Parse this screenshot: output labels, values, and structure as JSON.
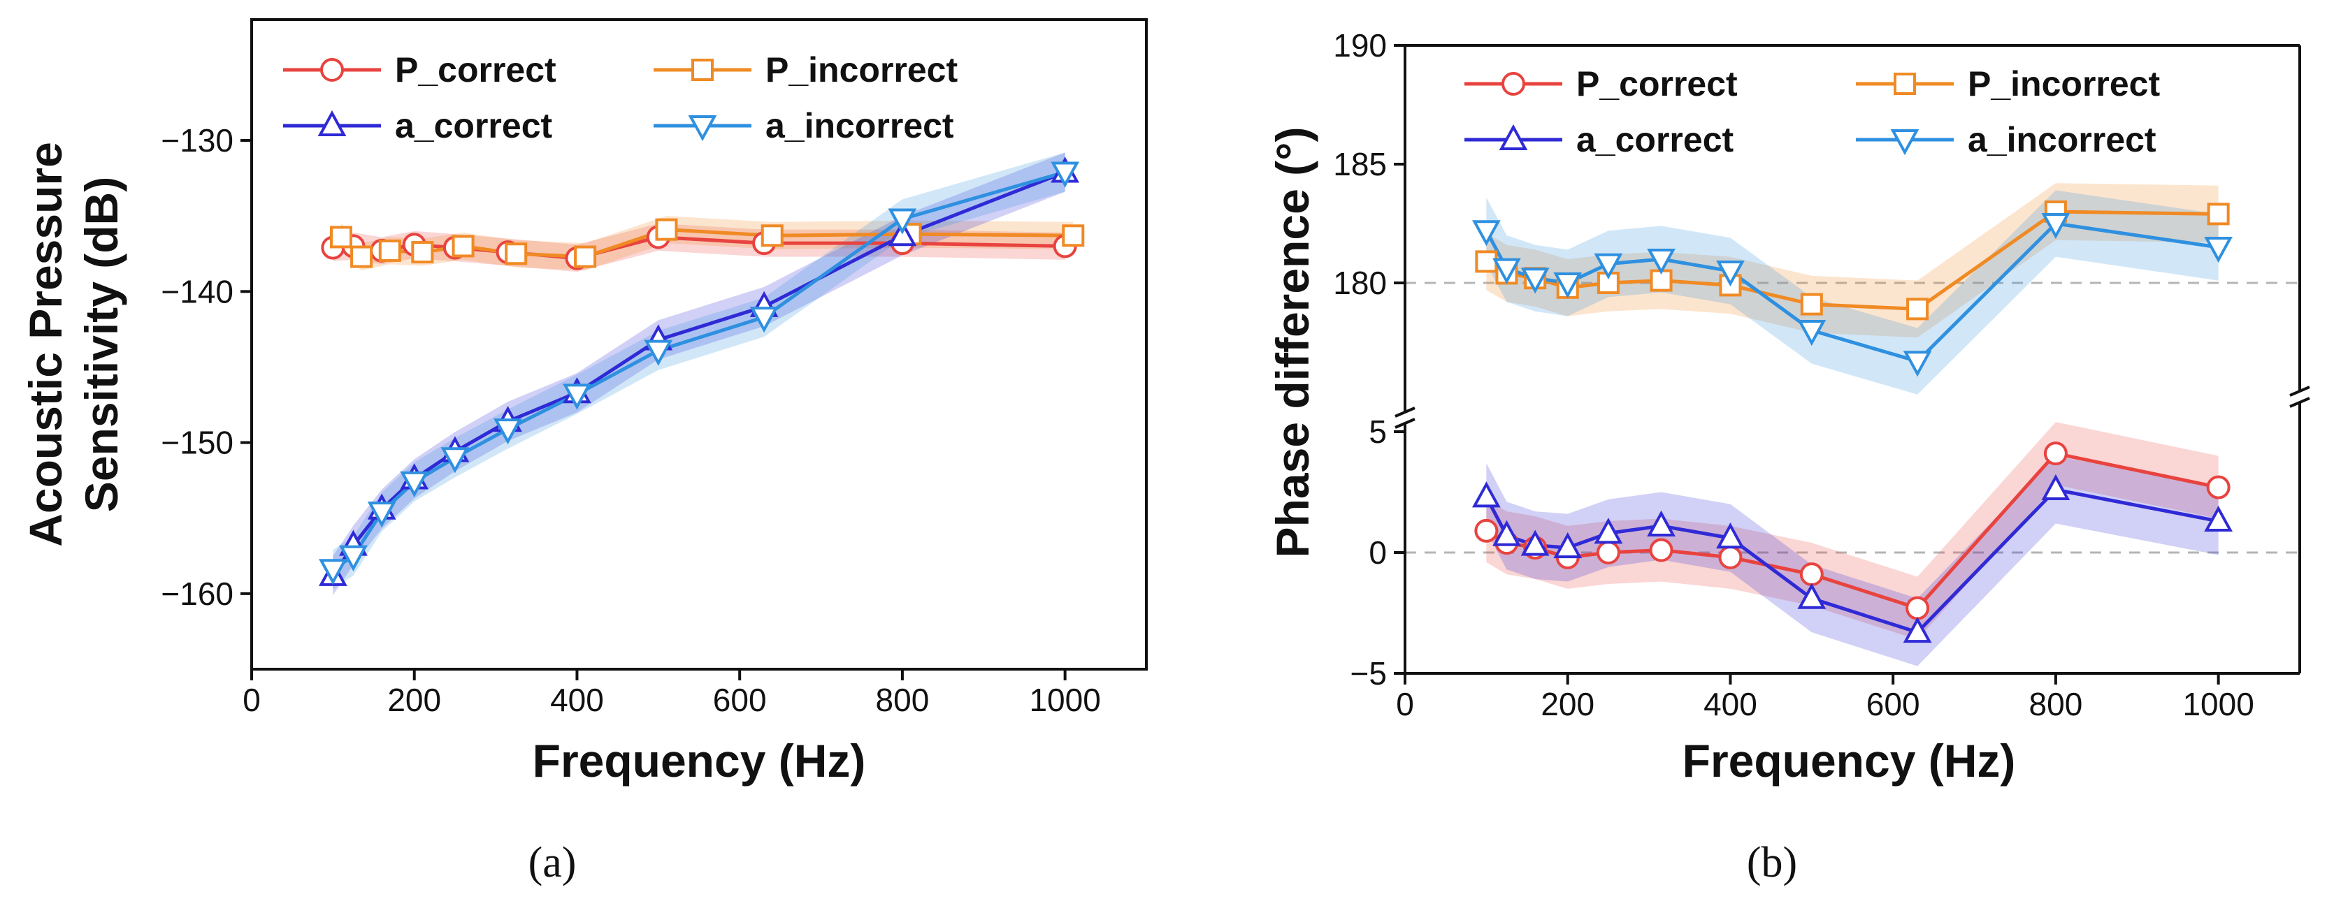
{
  "chart_data": [
    {
      "id": "a",
      "type": "line",
      "panel_label": "(a)",
      "xlabel": "Frequency (Hz)",
      "ylabel_lines": [
        "Acoustic Pressure",
        "Sensitivity (dB)"
      ],
      "xlim": [
        0,
        1100
      ],
      "ylim": [
        -165,
        -122
      ],
      "xticks": [
        0,
        200,
        400,
        600,
        800,
        1000
      ],
      "yticks": [
        -160,
        -150,
        -140,
        -130
      ],
      "legend_columns": 2,
      "series": [
        {
          "name": "P_correct",
          "color": "#e8433f",
          "marker": "circle",
          "x": [
            100,
            125,
            160,
            200,
            250,
            315,
            400,
            500,
            630,
            800,
            1000
          ],
          "y": [
            -137.1,
            -137.0,
            -137.3,
            -136.9,
            -137.1,
            -137.4,
            -137.8,
            -136.4,
            -136.8,
            -136.8,
            -137.0
          ],
          "band": 0.9
        },
        {
          "name": "P_incorrect",
          "color": "#f08a24",
          "marker": "square",
          "x": [
            110,
            135,
            170,
            210,
            260,
            325,
            410,
            510,
            640,
            810,
            1010
          ],
          "y": [
            -136.4,
            -137.7,
            -137.3,
            -137.4,
            -137.0,
            -137.5,
            -137.7,
            -135.9,
            -136.3,
            -136.2,
            -136.3
          ],
          "band": 0.9
        },
        {
          "name": "a_correct",
          "color": "#2f2ad6",
          "marker": "triangle-up",
          "x": [
            100,
            125,
            160,
            200,
            250,
            315,
            400,
            500,
            630,
            800,
            1000
          ],
          "y": [
            -158.8,
            -156.8,
            -154.4,
            -152.4,
            -150.6,
            -148.6,
            -146.7,
            -143.2,
            -141.0,
            -136.3,
            -132.1
          ],
          "band": 1.3
        },
        {
          "name": "a_incorrect",
          "color": "#2f90e0",
          "marker": "triangle-down",
          "x": [
            100,
            125,
            160,
            200,
            250,
            315,
            400,
            500,
            630,
            800,
            1000
          ],
          "y": [
            -158.4,
            -157.5,
            -154.6,
            -152.6,
            -151.0,
            -149.1,
            -146.8,
            -143.9,
            -141.7,
            -135.2,
            -132.1
          ],
          "band": 1.3
        }
      ]
    },
    {
      "id": "b",
      "type": "line",
      "panel_label": "(b)",
      "xlabel": "Frequency (Hz)",
      "ylabel": "Phase difference (°)",
      "broken_y_axis": true,
      "xlim": [
        0,
        1100
      ],
      "ylim_upper": [
        175,
        190
      ],
      "ylim_lower": [
        -5,
        5
      ],
      "yticks_upper": [
        180,
        185,
        190
      ],
      "yticks_lower": [
        -5,
        0,
        5
      ],
      "xticks": [
        0,
        200,
        400,
        600,
        800,
        1000
      ],
      "reference_lines": [
        180,
        0
      ],
      "legend_columns": 2,
      "series": [
        {
          "name": "P_correct",
          "color": "#e8433f",
          "marker": "circle",
          "segment": "lower",
          "x": [
            100,
            125,
            160,
            200,
            250,
            315,
            400,
            500,
            630,
            800,
            1000
          ],
          "y": [
            0.9,
            0.4,
            0.2,
            -0.2,
            0.0,
            0.1,
            -0.2,
            -0.9,
            -2.3,
            4.1,
            2.7
          ],
          "band": 1.3
        },
        {
          "name": "P_incorrect",
          "color": "#f08a24",
          "marker": "square",
          "segment": "upper",
          "x": [
            100,
            125,
            160,
            200,
            250,
            315,
            400,
            500,
            630,
            800,
            1000
          ],
          "y": [
            180.9,
            180.4,
            180.2,
            179.8,
            180.0,
            180.1,
            179.9,
            179.1,
            178.9,
            183.0,
            182.9
          ],
          "band": 1.2
        },
        {
          "name": "a_correct",
          "color": "#2f2ad6",
          "marker": "triangle-up",
          "segment": "lower",
          "x": [
            100,
            125,
            160,
            200,
            250,
            315,
            400,
            500,
            630,
            800,
            1000
          ],
          "y": [
            2.3,
            0.7,
            0.3,
            0.2,
            0.8,
            1.1,
            0.6,
            -1.9,
            -3.3,
            2.6,
            1.3
          ],
          "band": 1.4
        },
        {
          "name": "a_incorrect",
          "color": "#2f90e0",
          "marker": "triangle-down",
          "segment": "upper",
          "x": [
            100,
            125,
            160,
            200,
            250,
            315,
            400,
            500,
            630,
            800,
            1000
          ],
          "y": [
            182.2,
            180.6,
            180.2,
            180.0,
            180.8,
            181.0,
            180.5,
            178.0,
            176.7,
            182.5,
            181.5
          ],
          "band": 1.4
        }
      ]
    }
  ]
}
